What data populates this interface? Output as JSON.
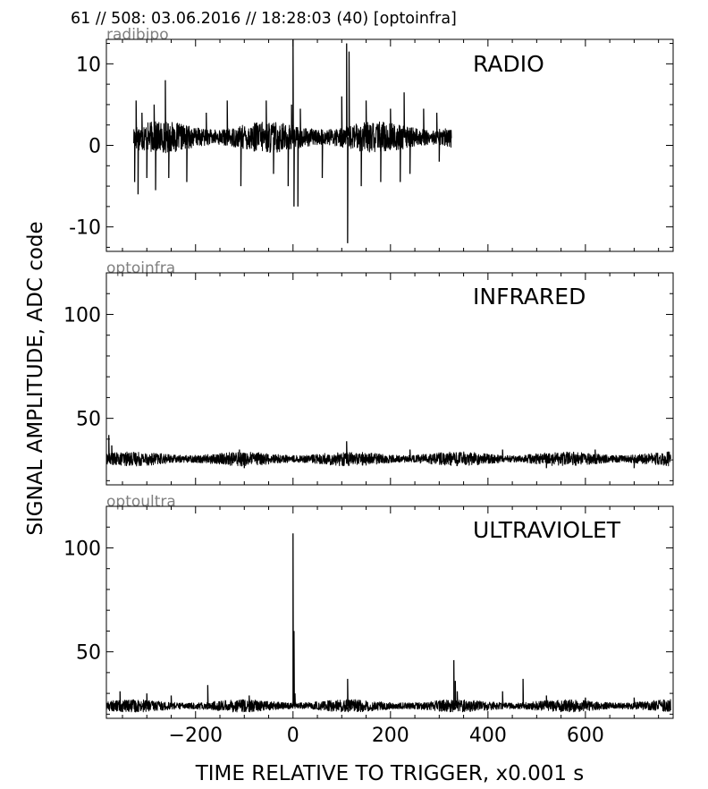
{
  "figure": {
    "title": "61 // 508:   03.06.2016 // 18:28:03 (40)  [optoinfra]",
    "ylabel": "SIGNAL AMPLITUDE,  ADC code",
    "xlabel": "TIME RELATIVE TO TRIGGER,   x0.001 s"
  },
  "chart_data": [
    {
      "type": "line",
      "channel": "radibipo",
      "label": "RADIO",
      "xlim": [
        -383,
        780
      ],
      "ylim": [
        -13,
        13
      ],
      "x_ticks": [
        -200,
        0,
        200,
        400,
        600
      ],
      "y_ticks": [
        -10,
        0,
        10
      ],
      "y_tick_labels": [
        "-10",
        "0",
        "10"
      ],
      "x_tick_labels": [],
      "series": [
        {
          "x_range": [
            -327,
            325
          ],
          "baseline": 1.0,
          "noise": 0.9,
          "spikes": [
            {
              "x": -325,
              "y": -4.5
            },
            {
              "x": -322,
              "y": 5.5
            },
            {
              "x": -318,
              "y": -6.0
            },
            {
              "x": -310,
              "y": 4.0
            },
            {
              "x": -300,
              "y": -4.0
            },
            {
              "x": -285,
              "y": 5.0
            },
            {
              "x": -282,
              "y": -5.5
            },
            {
              "x": -262,
              "y": 8.0
            },
            {
              "x": -255,
              "y": -4.0
            },
            {
              "x": -218,
              "y": -4.5
            },
            {
              "x": -178,
              "y": 4.0
            },
            {
              "x": -135,
              "y": 5.5
            },
            {
              "x": -107,
              "y": -5.0
            },
            {
              "x": -55,
              "y": 5.5
            },
            {
              "x": -40,
              "y": -3.5
            },
            {
              "x": -10,
              "y": -5.0
            },
            {
              "x": -3,
              "y": 5.0
            },
            {
              "x": 0,
              "y": 13.0
            },
            {
              "x": 2,
              "y": -7.5
            },
            {
              "x": 10,
              "y": -7.5
            },
            {
              "x": 15,
              "y": 4.5
            },
            {
              "x": 60,
              "y": -4.0
            },
            {
              "x": 100,
              "y": 6.0
            },
            {
              "x": 110,
              "y": 12.5
            },
            {
              "x": 112,
              "y": -12.0
            },
            {
              "x": 115,
              "y": 11.5
            },
            {
              "x": 140,
              "y": -5.0
            },
            {
              "x": 150,
              "y": 5.5
            },
            {
              "x": 180,
              "y": -4.5
            },
            {
              "x": 200,
              "y": 4.5
            },
            {
              "x": 220,
              "y": -4.5
            },
            {
              "x": 228,
              "y": 6.5
            },
            {
              "x": 240,
              "y": -3.5
            },
            {
              "x": 268,
              "y": 4.5
            },
            {
              "x": 295,
              "y": 4.0
            },
            {
              "x": 300,
              "y": -2.0
            }
          ]
        }
      ]
    },
    {
      "type": "line",
      "channel": "optoinfra",
      "label": "INFRARED",
      "xlim": [
        -383,
        780
      ],
      "ylim": [
        18,
        120
      ],
      "x_ticks": [
        -200,
        0,
        200,
        400,
        600
      ],
      "y_ticks": [
        50,
        100
      ],
      "y_tick_labels": [
        "50",
        "100"
      ],
      "x_tick_labels": [],
      "series": [
        {
          "x_range": [
            -383,
            775
          ],
          "baseline": 30.5,
          "noise": 1.6,
          "spikes": [
            {
              "x": -378,
              "y": 42
            },
            {
              "x": -372,
              "y": 37
            },
            {
              "x": -110,
              "y": 35
            },
            {
              "x": 110,
              "y": 39
            },
            {
              "x": 240,
              "y": 35
            },
            {
              "x": 430,
              "y": 35
            },
            {
              "x": 620,
              "y": 35
            },
            {
              "x": -100,
              "y": 26
            },
            {
              "x": 520,
              "y": 26
            },
            {
              "x": 700,
              "y": 26
            }
          ]
        }
      ]
    },
    {
      "type": "line",
      "channel": "optoultra",
      "label": "ULTRAVIOLET",
      "xlim": [
        -383,
        780
      ],
      "ylim": [
        18,
        120
      ],
      "x_ticks": [
        -200,
        0,
        200,
        400,
        600
      ],
      "y_ticks": [
        50,
        100
      ],
      "y_tick_labels": [
        "50",
        "100"
      ],
      "x_tick_labels": [
        "−200",
        "0",
        "200",
        "400",
        "600"
      ],
      "series": [
        {
          "x_range": [
            -383,
            775
          ],
          "baseline": 24.0,
          "noise": 1.4,
          "spikes": [
            {
              "x": -355,
              "y": 31
            },
            {
              "x": -300,
              "y": 30
            },
            {
              "x": -250,
              "y": 29
            },
            {
              "x": -175,
              "y": 34
            },
            {
              "x": -90,
              "y": 29
            },
            {
              "x": 0,
              "y": 107
            },
            {
              "x": 2,
              "y": 60
            },
            {
              "x": 4,
              "y": 30
            },
            {
              "x": 112,
              "y": 37
            },
            {
              "x": 330,
              "y": 46
            },
            {
              "x": 333,
              "y": 36
            },
            {
              "x": 337,
              "y": 31
            },
            {
              "x": 430,
              "y": 31
            },
            {
              "x": 472,
              "y": 37
            },
            {
              "x": 520,
              "y": 29
            },
            {
              "x": 600,
              "y": 28
            },
            {
              "x": 700,
              "y": 28
            }
          ]
        }
      ]
    }
  ]
}
